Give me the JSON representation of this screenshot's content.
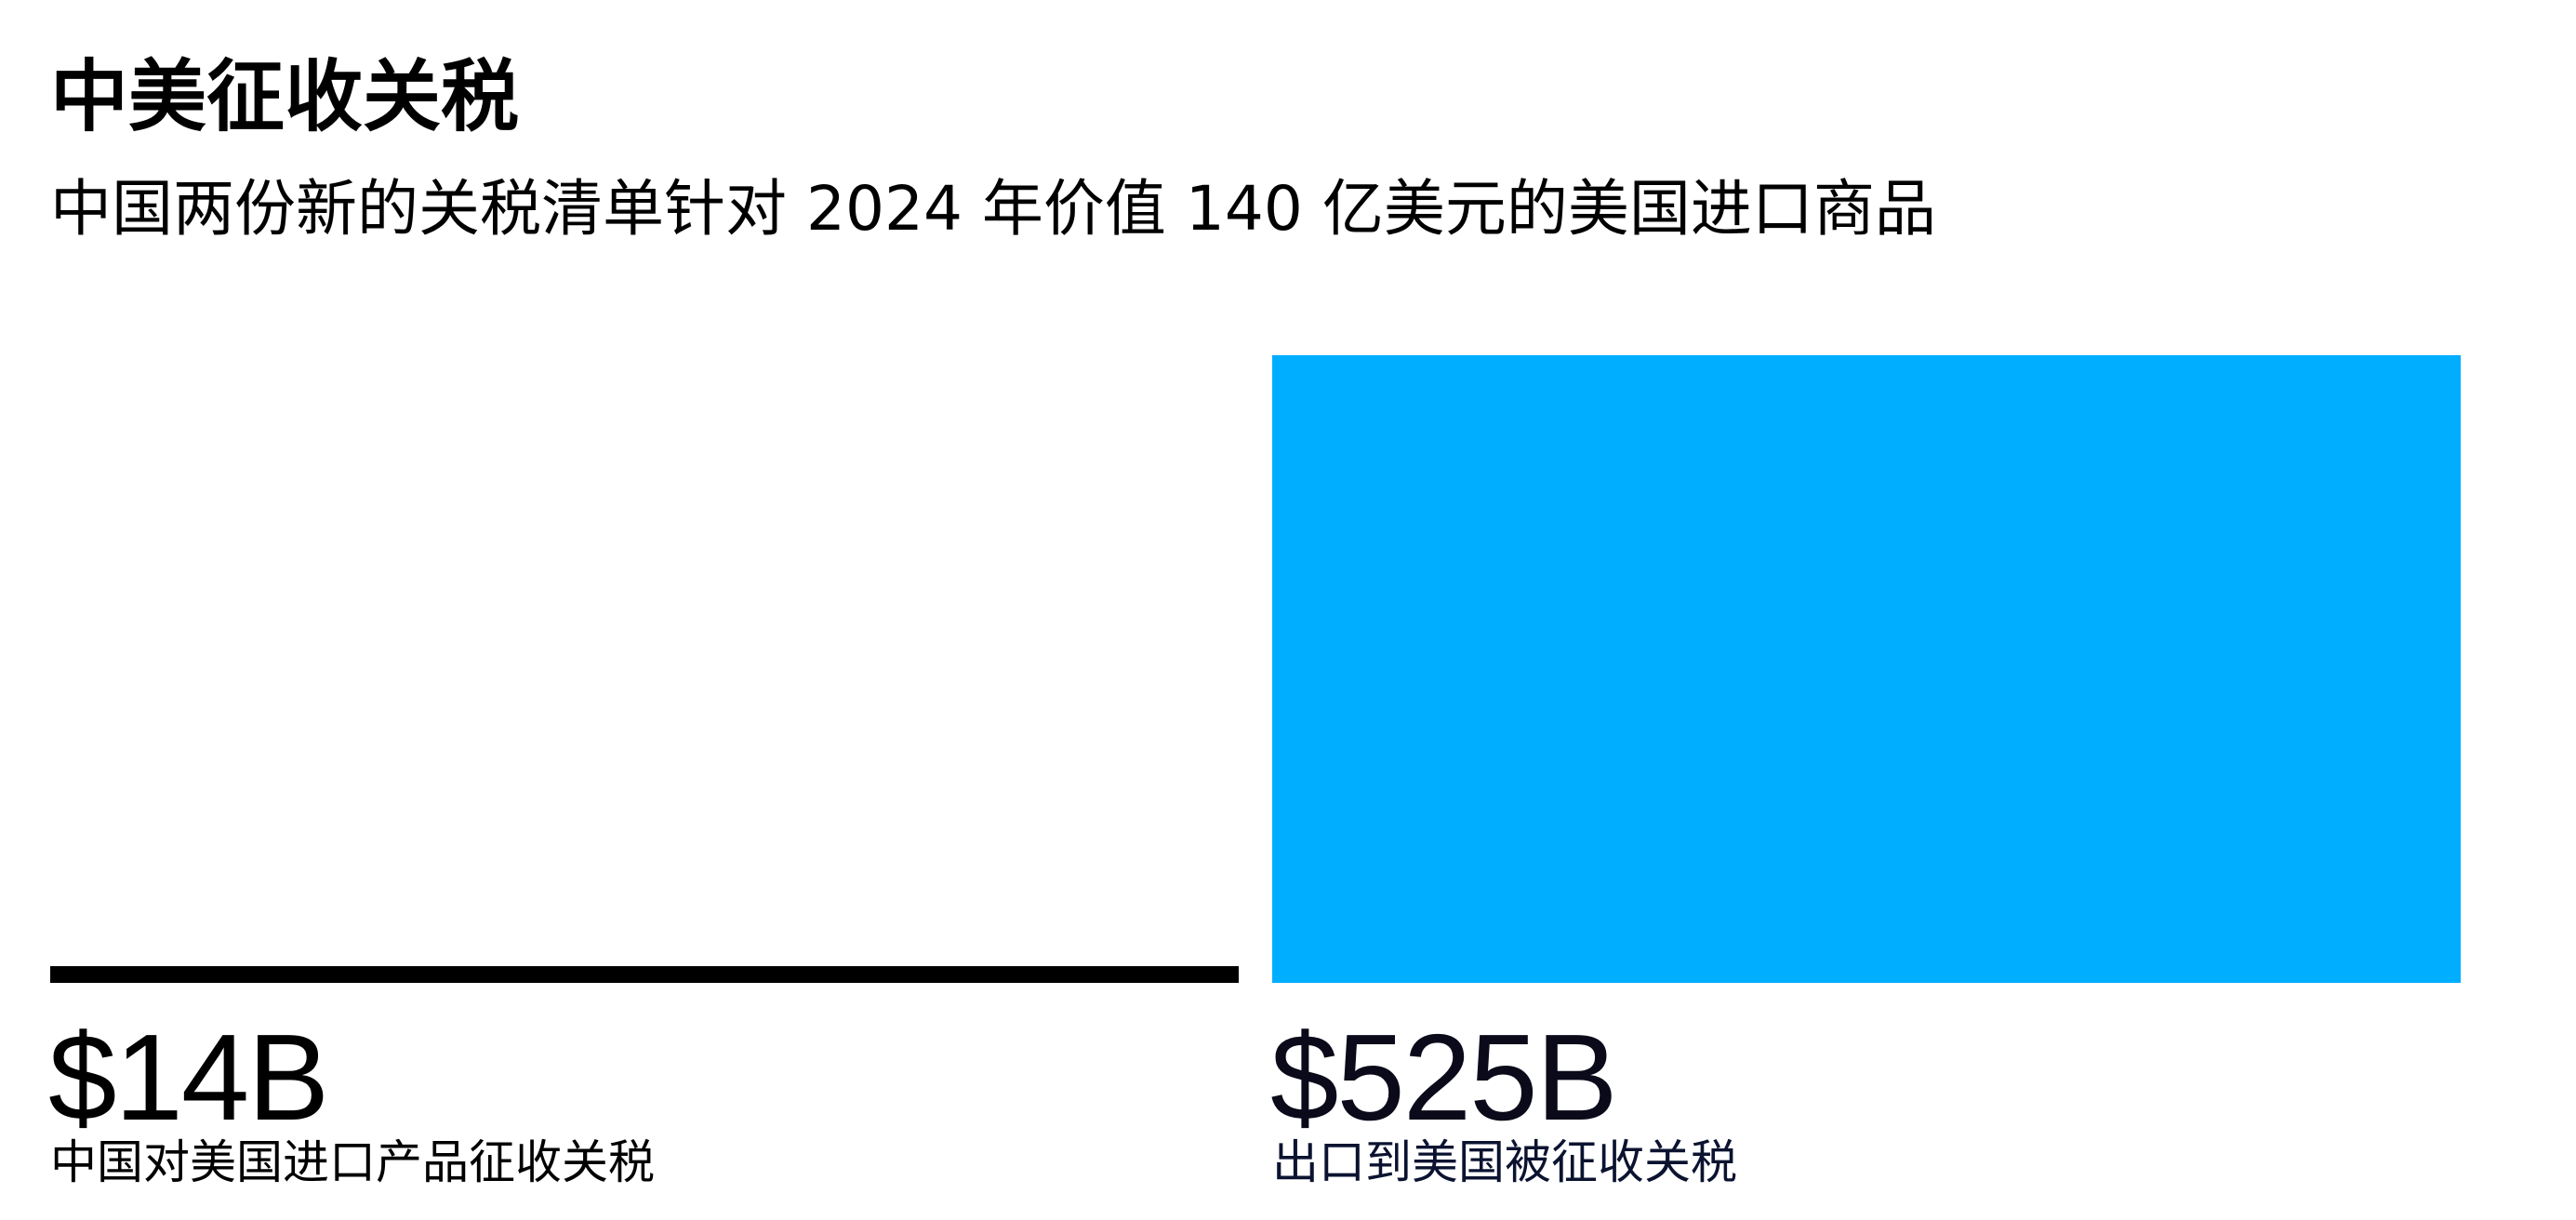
{
  "title": "中美征收关税",
  "subtitle": "中国两份新的关税清单针对 2024 年价值 140 亿美元的美国进口商品",
  "colors": {
    "bar_small": "#000000",
    "bar_large": "#00AEFF",
    "value_small": "#000000",
    "value_large": "#0a0a1a",
    "label_small": "#000000",
    "label_large": "#0b1330"
  },
  "chart_data": {
    "type": "bar",
    "title": "中美征收关税",
    "subtitle": "中国两份新的关税清单针对 2024 年价值 140 亿美元的美国进口商品",
    "categories": [
      "中国对美国进口产品征收关税",
      "出口到美国被征收关税"
    ],
    "values": [
      14,
      525
    ],
    "value_labels": [
      "$14B",
      "$525B"
    ],
    "unit": "B USD",
    "ylim": [
      0,
      525
    ],
    "grid": false
  }
}
